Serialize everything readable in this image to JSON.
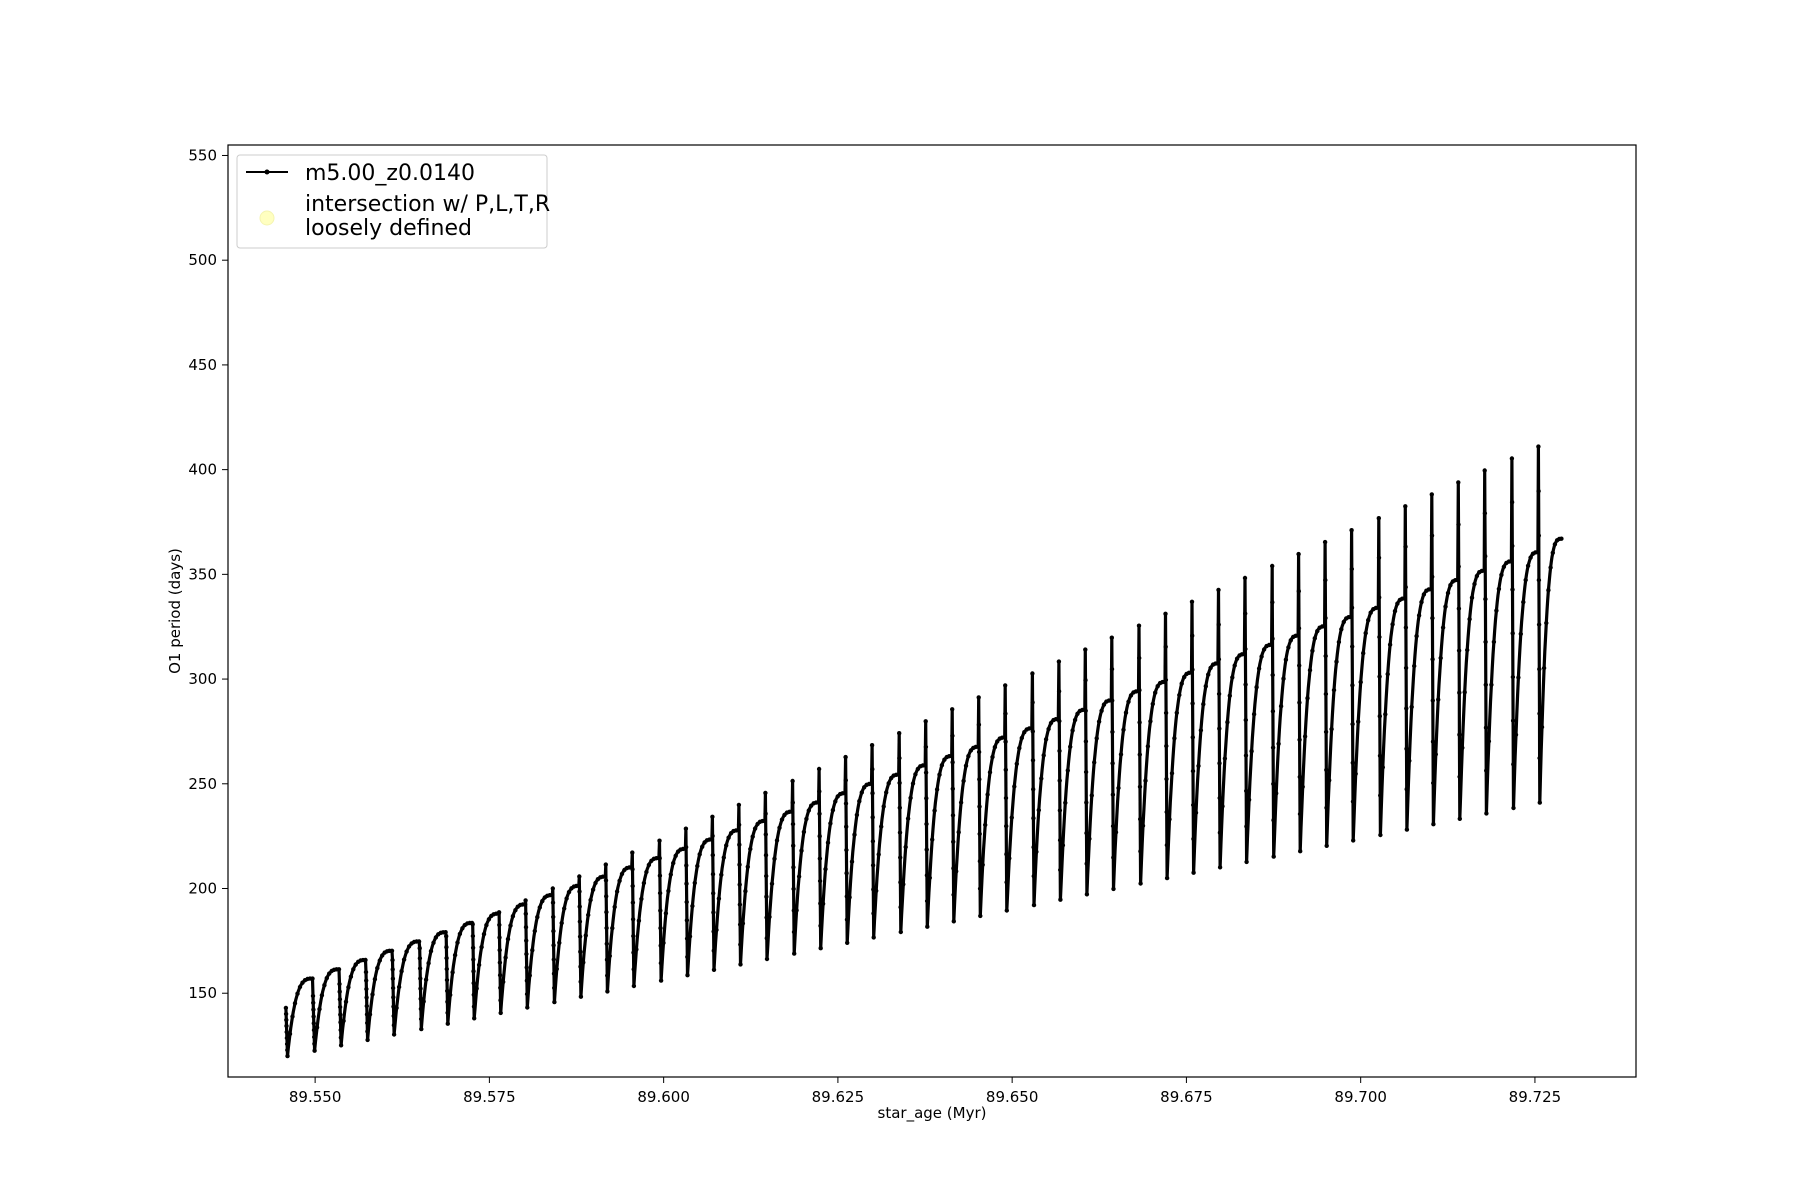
{
  "chart_data": {
    "type": "line",
    "title": "",
    "xlabel": "star_age (Myr)",
    "ylabel": "O1 period (days)",
    "xlim": [
      89.5375,
      89.7395
    ],
    "ylim": [
      110,
      555
    ],
    "xticks": [
      89.55,
      89.575,
      89.6,
      89.625,
      89.65,
      89.675,
      89.7,
      89.725
    ],
    "xtick_labels": [
      "89.550",
      "89.575",
      "89.600",
      "89.625",
      "89.650",
      "89.675",
      "89.700",
      "89.725"
    ],
    "yticks": [
      150,
      200,
      250,
      300,
      350,
      400,
      450,
      500,
      550
    ],
    "ytick_labels": [
      "150",
      "200",
      "250",
      "300",
      "350",
      "400",
      "450",
      "500",
      "550"
    ],
    "grid": false,
    "legend_position": "top-left",
    "legend": [
      {
        "label": "m5.00_z0.0140",
        "marker": "line-with-dots",
        "color": "#000000"
      },
      {
        "label_lines": [
          "intersection w/ P,L,T,R",
          "loosely defined"
        ],
        "marker": "circle",
        "color": "#ffffc0"
      }
    ],
    "series": [
      {
        "name": "m5.00_z0.0140",
        "color": "#000000",
        "pulse_ages": [
          89.5458,
          89.5497,
          89.5535,
          89.5573,
          89.5611,
          89.565,
          89.5688,
          89.5726,
          89.5764,
          89.5802,
          89.5841,
          89.5879,
          89.5917,
          89.5955,
          89.5994,
          89.6032,
          89.607,
          89.6108,
          89.6146,
          89.6185,
          89.6223,
          89.6261,
          89.6299,
          89.6338,
          89.6376,
          89.6414,
          89.6452,
          89.649,
          89.6529,
          89.6567,
          89.6605,
          89.6643,
          89.6682,
          89.672,
          89.6758,
          89.6796,
          89.6834,
          89.6873,
          89.6911,
          89.6949,
          89.6987,
          89.7026,
          89.7064,
          89.7102,
          89.714,
          89.7178,
          89.7217,
          89.7255
        ],
        "start_age": 89.5458,
        "end_age": 89.7288,
        "final_period": 367,
        "min_period_first": 120,
        "min_period_last": 241,
        "plateau_period_first": 157,
        "plateau_period_last": 365,
        "spike_period_first": 143,
        "spike_period_last": 411
      }
    ]
  }
}
